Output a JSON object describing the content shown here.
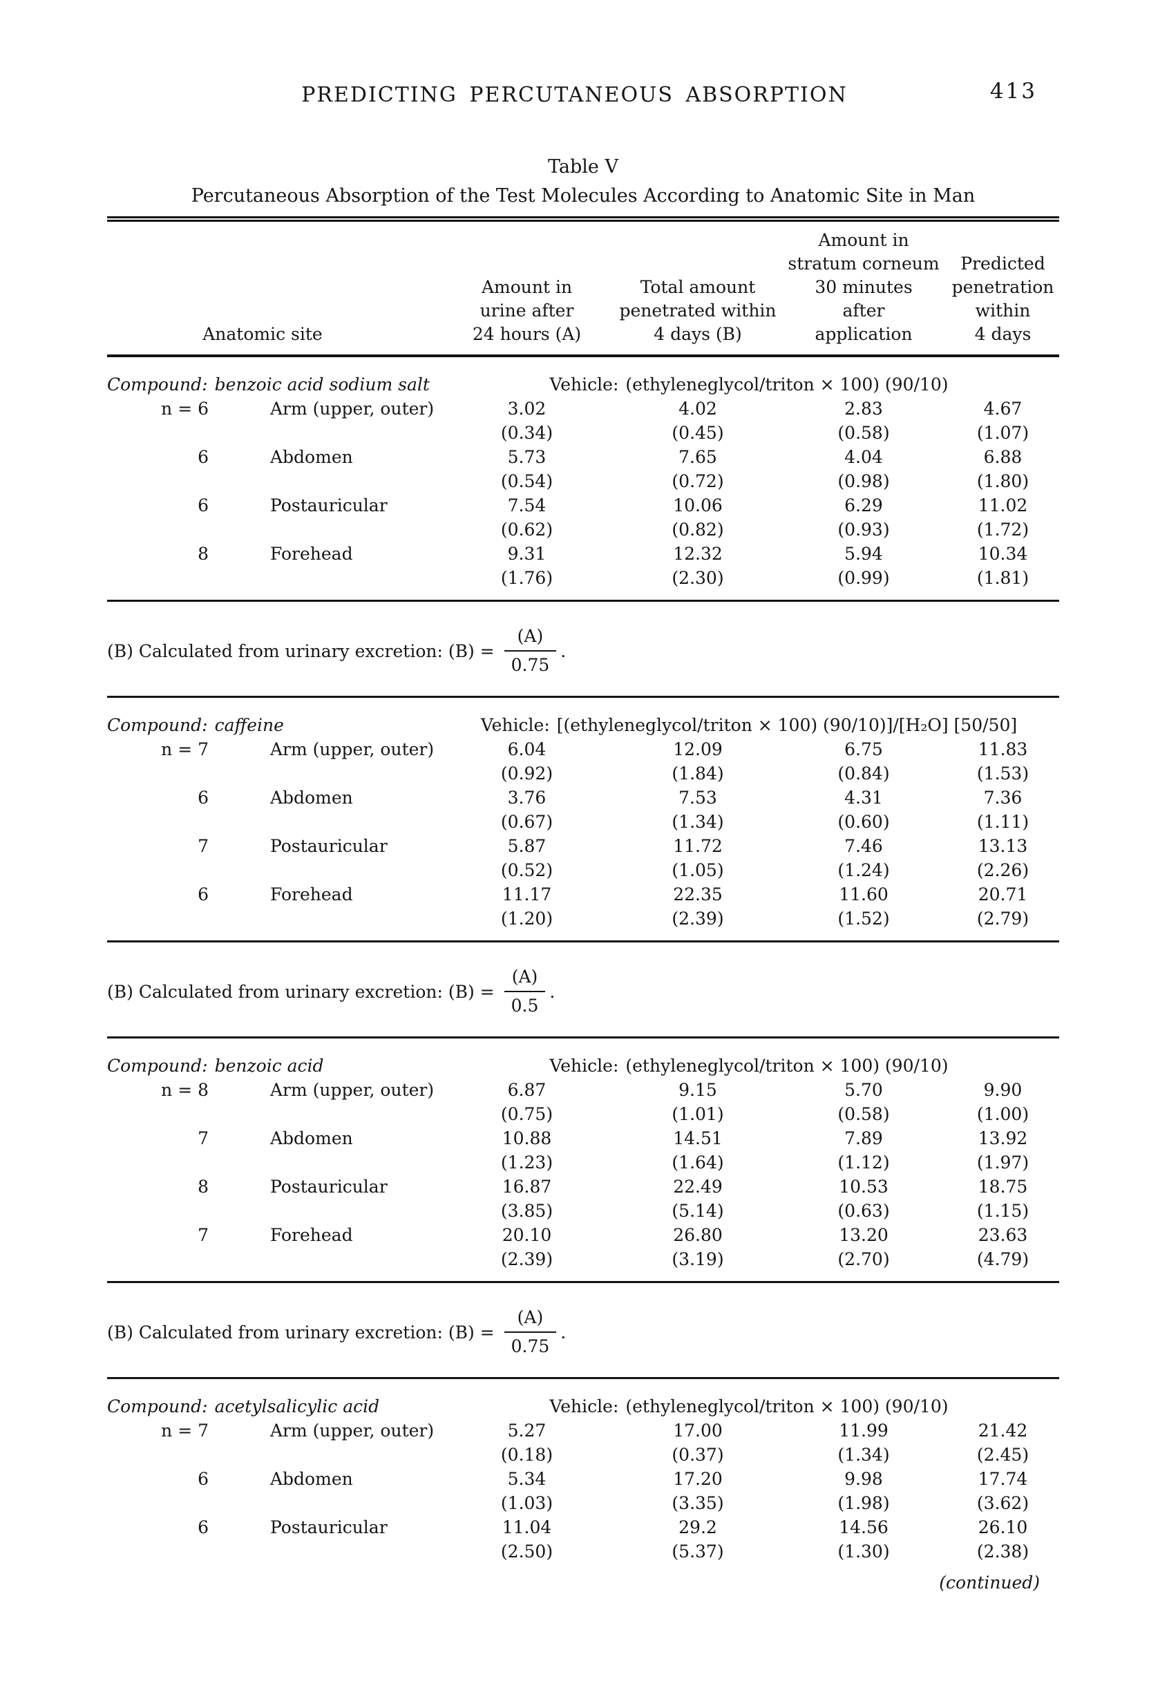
{
  "page": {
    "running_head": "PREDICTING PERCUTANEOUS ABSORPTION",
    "page_number": "413"
  },
  "table": {
    "title": "Table V",
    "subtitle": "Percutaneous Absorption of the Test Molecules According to Anatomic Site in Man",
    "headers": {
      "site": "Anatomic site",
      "a": [
        "Amount in",
        "urine after",
        "24 hours (A)"
      ],
      "b": [
        "Total amount",
        "penetrated within",
        "4 days (B)"
      ],
      "c": [
        "Amount in",
        "stratum corneum",
        "30 minutes",
        "after",
        "application"
      ],
      "d": [
        "Predicted",
        "penetration",
        "within",
        "4 days"
      ]
    },
    "sections": [
      {
        "compound_label": "Compound:",
        "compound": "benzoic acid sodium salt",
        "vehicle_label": "Vehicle:",
        "vehicle": "(ethyleneglycol/triton × 100) (90/10)",
        "rows": [
          {
            "n": "n = 6",
            "site": "Arm (upper, outer)",
            "a": "3.02",
            "b": "4.02",
            "c": "2.83",
            "d": "4.67",
            "sa": "(0.34)",
            "sb": "(0.45)",
            "sc": "(0.58)",
            "sd": "(1.07)"
          },
          {
            "n": "6",
            "site": "Abdomen",
            "a": "5.73",
            "b": "7.65",
            "c": "4.04",
            "d": "6.88",
            "sa": "(0.54)",
            "sb": "(0.72)",
            "sc": "(0.98)",
            "sd": "(1.80)"
          },
          {
            "n": "6",
            "site": "Postauricular",
            "a": "7.54",
            "b": "10.06",
            "c": "6.29",
            "d": "11.02",
            "sa": "(0.62)",
            "sb": "(0.82)",
            "sc": "(0.93)",
            "sd": "(1.72)"
          },
          {
            "n": "8",
            "site": "Forehead",
            "a": "9.31",
            "b": "12.32",
            "c": "5.94",
            "d": "10.34",
            "sa": "(1.76)",
            "sb": "(2.30)",
            "sc": "(0.99)",
            "sd": "(1.81)"
          }
        ],
        "footnote": {
          "text": "(B) Calculated from urinary excretion: (B) =",
          "numerator": "(A)",
          "denominator": "0.75",
          "period": "."
        }
      },
      {
        "compound_label": "Compound:",
        "compound": "caffeine",
        "vehicle_label": "Vehicle:",
        "vehicle": "[(ethyleneglycol/triton × 100) (90/10)]/[H₂O] [50/50]",
        "rows": [
          {
            "n": "n = 7",
            "site": "Arm (upper, outer)",
            "a": "6.04",
            "b": "12.09",
            "c": "6.75",
            "d": "11.83",
            "sa": "(0.92)",
            "sb": "(1.84)",
            "sc": "(0.84)",
            "sd": "(1.53)"
          },
          {
            "n": "6",
            "site": "Abdomen",
            "a": "3.76",
            "b": "7.53",
            "c": "4.31",
            "d": "7.36",
            "sa": "(0.67)",
            "sb": "(1.34)",
            "sc": "(0.60)",
            "sd": "(1.11)"
          },
          {
            "n": "7",
            "site": "Postauricular",
            "a": "5.87",
            "b": "11.72",
            "c": "7.46",
            "d": "13.13",
            "sa": "(0.52)",
            "sb": "(1.05)",
            "sc": "(1.24)",
            "sd": "(2.26)"
          },
          {
            "n": "6",
            "site": "Forehead",
            "a": "11.17",
            "b": "22.35",
            "c": "11.60",
            "d": "20.71",
            "sa": "(1.20)",
            "sb": "(2.39)",
            "sc": "(1.52)",
            "sd": "(2.79)"
          }
        ],
        "footnote": {
          "text": "(B) Calculated from urinary excretion: (B) =",
          "numerator": "(A)",
          "denominator": "0.5",
          "period": "."
        }
      },
      {
        "compound_label": "Compound:",
        "compound": "benzoic acid",
        "vehicle_label": "Vehicle:",
        "vehicle": "(ethyleneglycol/triton × 100) (90/10)",
        "rows": [
          {
            "n": "n = 8",
            "site": "Arm (upper, outer)",
            "a": "6.87",
            "b": "9.15",
            "c": "5.70",
            "d": "9.90",
            "sa": "(0.75)",
            "sb": "(1.01)",
            "sc": "(0.58)",
            "sd": "(1.00)"
          },
          {
            "n": "7",
            "site": "Abdomen",
            "a": "10.88",
            "b": "14.51",
            "c": "7.89",
            "d": "13.92",
            "sa": "(1.23)",
            "sb": "(1.64)",
            "sc": "(1.12)",
            "sd": "(1.97)"
          },
          {
            "n": "8",
            "site": "Postauricular",
            "a": "16.87",
            "b": "22.49",
            "c": "10.53",
            "d": "18.75",
            "sa": "(3.85)",
            "sb": "(5.14)",
            "sc": "(0.63)",
            "sd": "(1.15)"
          },
          {
            "n": "7",
            "site": "Forehead",
            "a": "20.10",
            "b": "26.80",
            "c": "13.20",
            "d": "23.63",
            "sa": "(2.39)",
            "sb": "(3.19)",
            "sc": "(2.70)",
            "sd": "(4.79)"
          }
        ],
        "footnote": {
          "text": "(B) Calculated from urinary excretion: (B) =",
          "numerator": "(A)",
          "denominator": "0.75",
          "period": "."
        }
      },
      {
        "compound_label": "Compound:",
        "compound": "acetylsalicylic acid",
        "vehicle_label": "Vehicle:",
        "vehicle": "(ethyleneglycol/triton × 100) (90/10)",
        "rows": [
          {
            "n": "n = 7",
            "site": "Arm (upper, outer)",
            "a": "5.27",
            "b": "17.00",
            "c": "11.99",
            "d": "21.42",
            "sa": "(0.18)",
            "sb": "(0.37)",
            "sc": "(1.34)",
            "sd": "(2.45)"
          },
          {
            "n": "6",
            "site": "Abdomen",
            "a": "5.34",
            "b": "17.20",
            "c": "9.98",
            "d": "17.74",
            "sa": "(1.03)",
            "sb": "(3.35)",
            "sc": "(1.98)",
            "sd": "(3.62)"
          },
          {
            "n": "6",
            "site": "Postauricular",
            "a": "11.04",
            "b": "29.2",
            "c": "14.56",
            "d": "26.10",
            "sa": "(2.50)",
            "sb": "(5.37)",
            "sc": "(1.30)",
            "sd": "(2.38)"
          }
        ],
        "continued": "(continued)"
      }
    ]
  }
}
